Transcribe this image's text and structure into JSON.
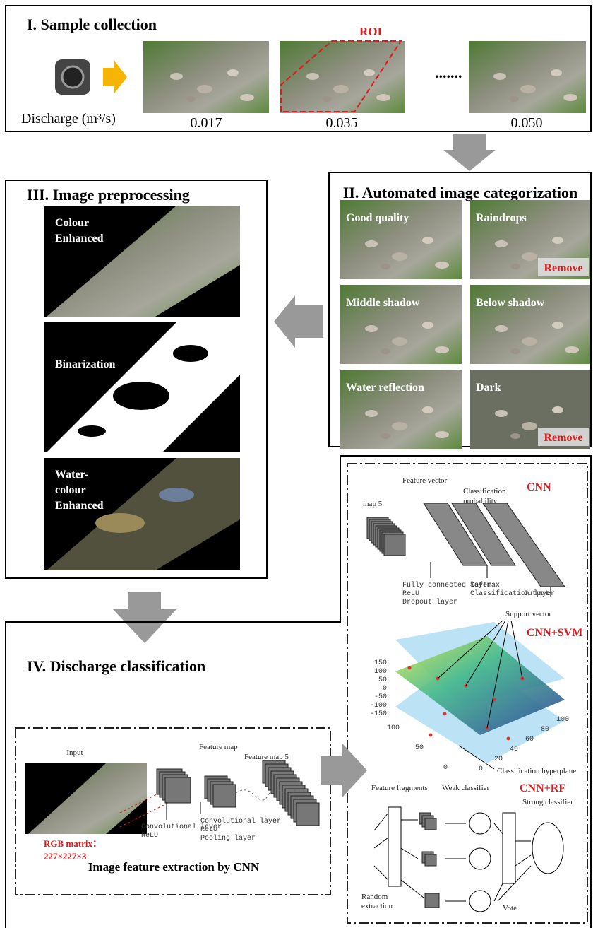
{
  "sample_collection": {
    "title": "I. Sample collection",
    "roi": "ROI",
    "ellipsis": ".......",
    "discharge_label": "Discharge (m³/s)",
    "values": [
      "0.017",
      "0.035",
      "0.050"
    ]
  },
  "categorization": {
    "title": "II. Automated image categorization",
    "categories": [
      {
        "label": "Good quality"
      },
      {
        "label": "Raindrops",
        "action": "Remove"
      },
      {
        "label": "Middle shadow"
      },
      {
        "label": "Below shadow"
      },
      {
        "label": "Water reflection"
      },
      {
        "label": "Dark",
        "action": "Remove"
      }
    ]
  },
  "preprocessing": {
    "title": "III. Image  preprocessing",
    "steps": [
      [
        "Colour",
        "Enhanced"
      ],
      [
        "Binarization"
      ],
      [
        "Water-",
        "colour",
        "Enhanced"
      ]
    ]
  },
  "classification": {
    "title": "IV. Discharge classification",
    "cnn_extraction": {
      "input": "Input",
      "feature_map": "Feature map",
      "feature_map_5": "Feature map 5",
      "conv1": [
        "Convolutional layer",
        "ReLU"
      ],
      "conv2": [
        "Convolutional layer",
        "ReLU",
        "Pooling layer"
      ],
      "rgb": [
        "RGB matrix：",
        "227×227×3"
      ],
      "caption": "Image feature extraction by CNN"
    },
    "cnn": {
      "name": "CNN",
      "feature_vector": "Feature vector",
      "probability": [
        "Classification",
        "probability"
      ],
      "map5": "map  5",
      "fc": [
        "Fully connected layer",
        "ReLU",
        "Dropout layer"
      ],
      "softmax": [
        "Softmax",
        "Classification layer"
      ],
      "output": "Output"
    },
    "svm": {
      "name": "CNN+SVM",
      "support_vector": "Support vector",
      "hyperplane": "Classification hyperplane",
      "z_ticks": [
        "150",
        "100",
        "50",
        "0",
        "-50",
        "-100",
        "-150"
      ],
      "x_ticks": [
        "100",
        "50",
        "0"
      ],
      "y_ticks": [
        "0",
        "20",
        "40",
        "60",
        "80",
        "100"
      ]
    },
    "rf": {
      "name": "CNN+RF",
      "fragments": "Feature fragments",
      "weak": "Weak classifier",
      "strong": "Strong classifier",
      "random": [
        "Random",
        "extraction"
      ],
      "vote": "Vote"
    }
  }
}
